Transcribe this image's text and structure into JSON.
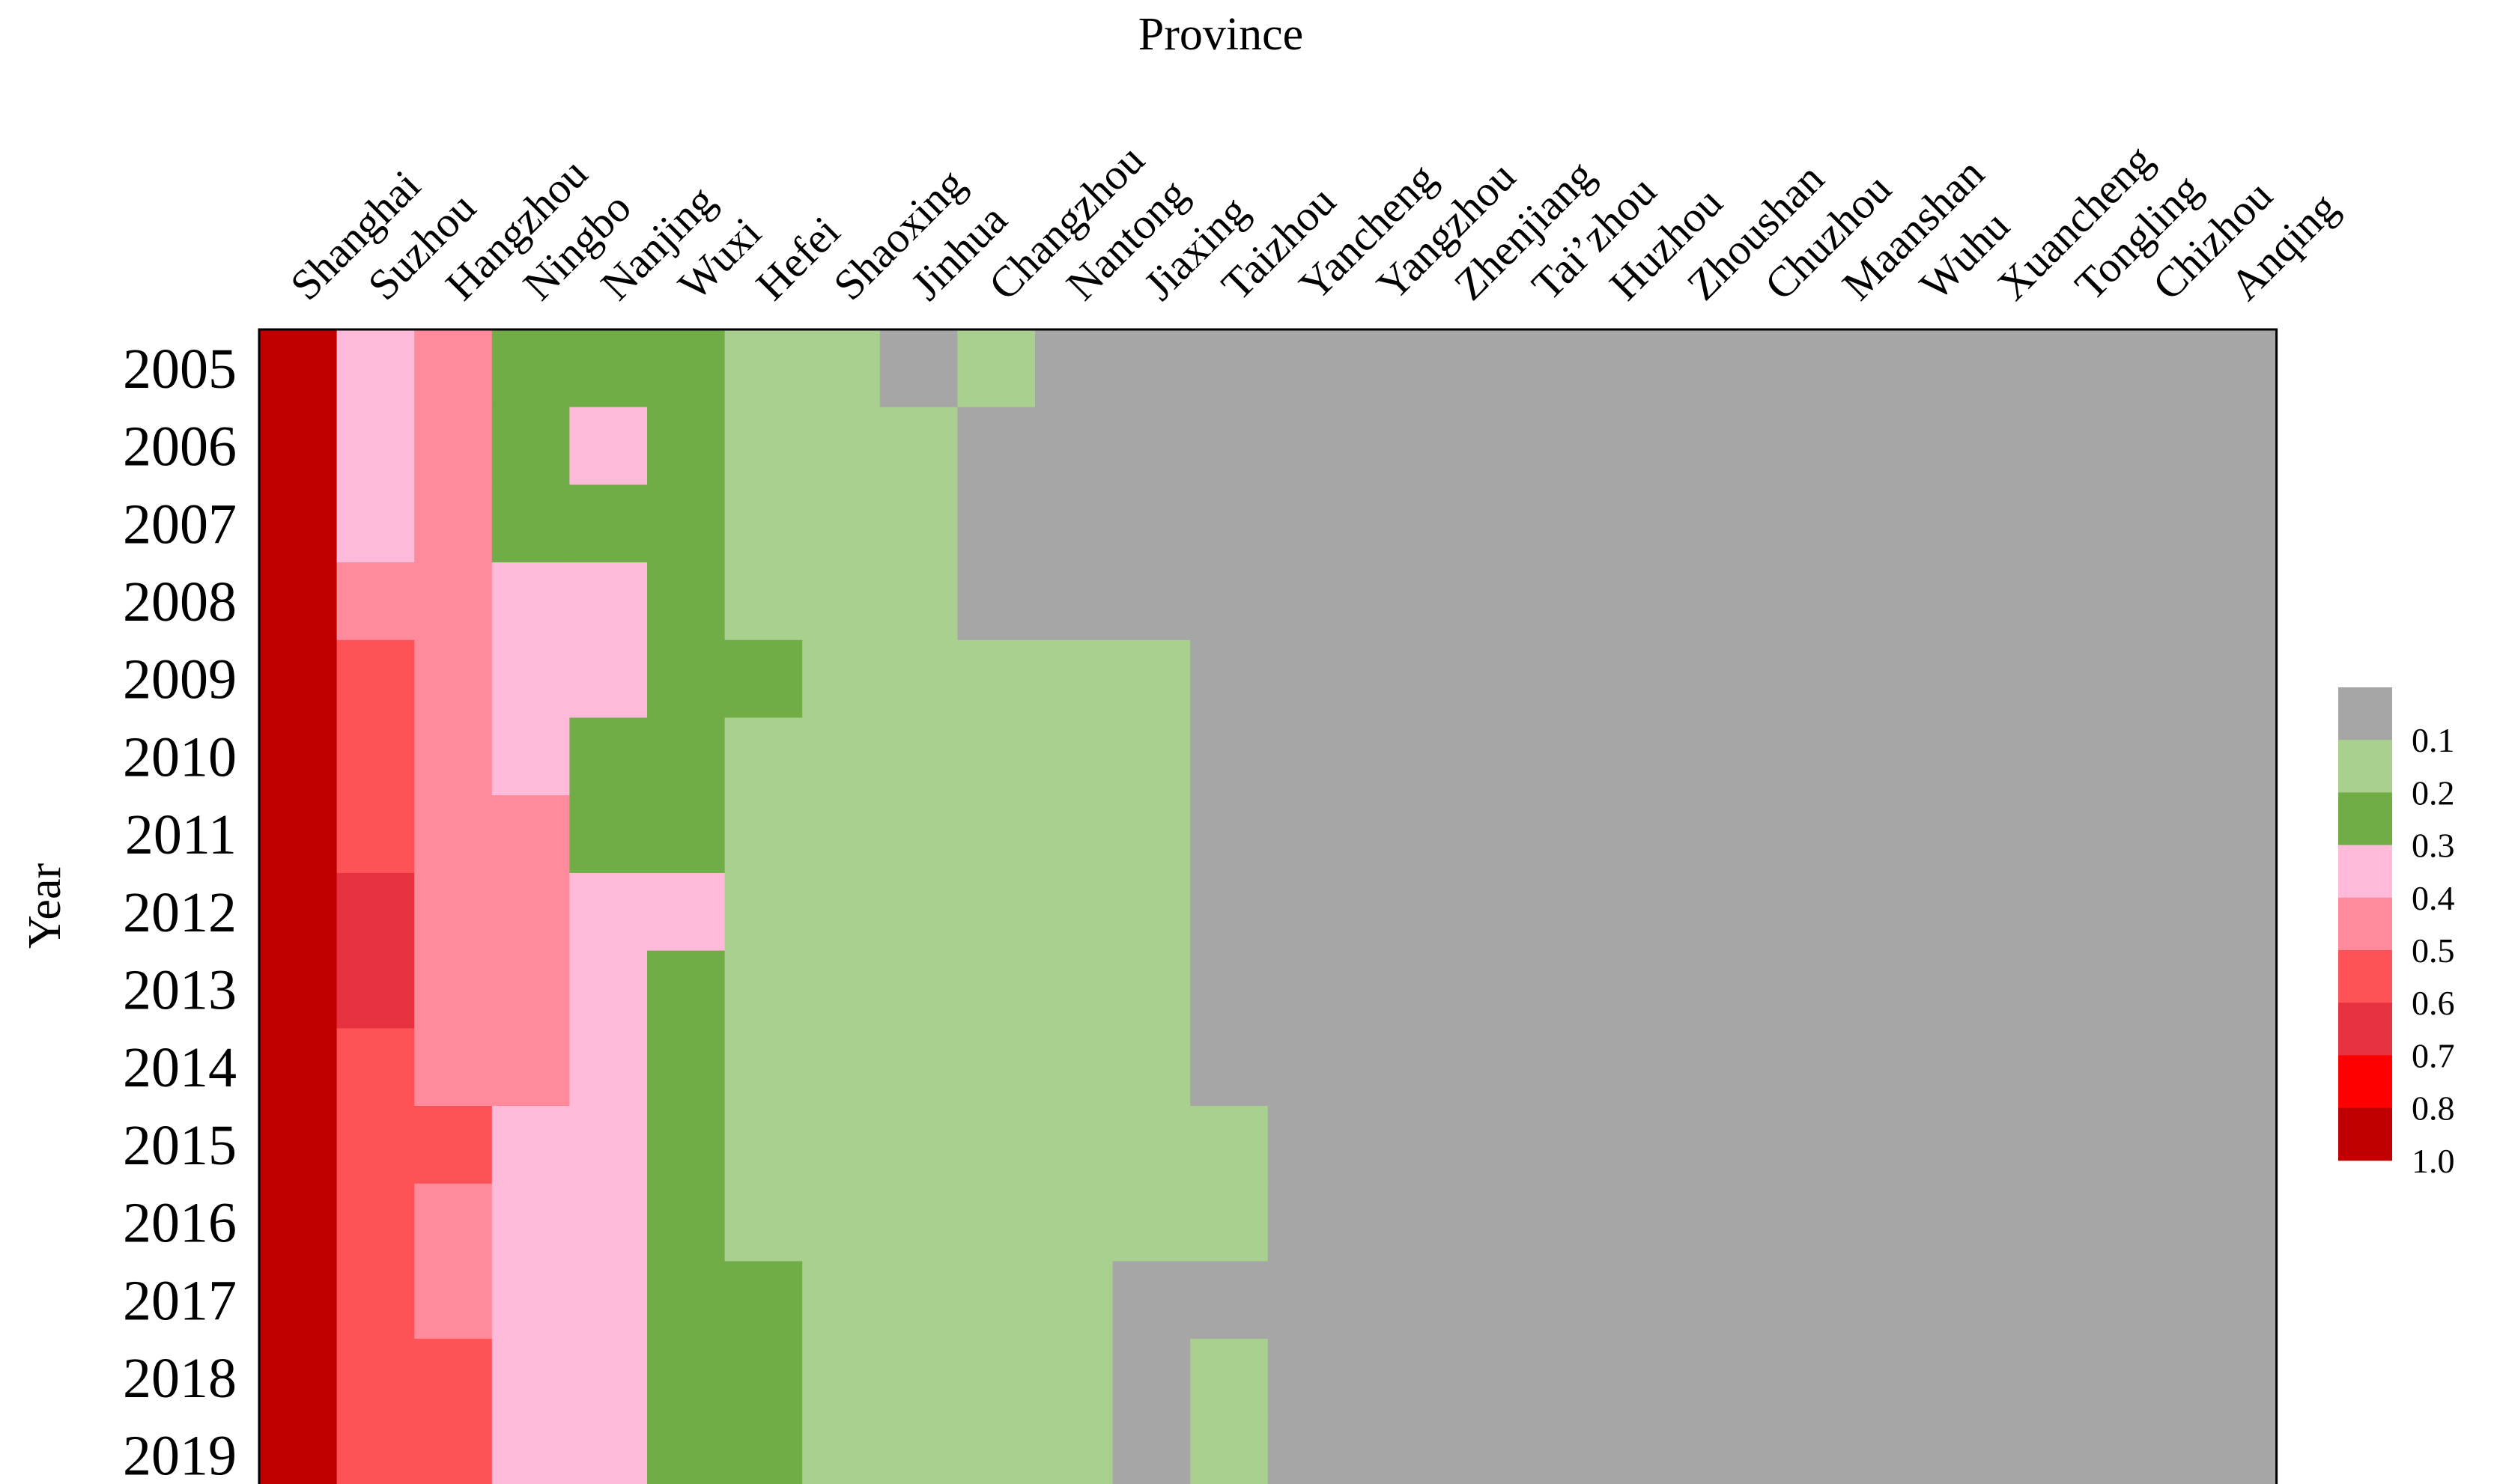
{
  "chart_data": {
    "type": "heatmap",
    "xlabel": "Province",
    "ylabel": "Year",
    "columns": [
      "Shanghai",
      "Suzhou",
      "Hangzhou",
      "Ningbo",
      "Nanjing",
      "Wuxi",
      "Hefei",
      "Shaoxing",
      "Jinhua",
      "Changzhou",
      "Nantong",
      "Jiaxing",
      "Taizhou",
      "Yancheng",
      "Yangzhou",
      "Zhenjiang",
      "Tai’zhou",
      "Huzhou",
      "Zhoushan",
      "Chuzhou",
      "Maanshan",
      "Wuhu",
      "Xuancheng",
      "Tongling",
      "Chizhou",
      "Anqing"
    ],
    "rows": [
      "2005",
      "2006",
      "2007",
      "2008",
      "2009",
      "2010",
      "2011",
      "2012",
      "2013",
      "2014",
      "2015",
      "2016",
      "2017",
      "2018",
      "2019"
    ],
    "values": [
      [
        1.0,
        0.4,
        0.5,
        0.3,
        0.3,
        0.3,
        0.2,
        0.2,
        0.1,
        0.2,
        0.1,
        0.1,
        0.1,
        0.1,
        0.1,
        0.1,
        0.1,
        0.1,
        0.0,
        0.0,
        0.0,
        0.0,
        0.0,
        0.0,
        0.0,
        0.0
      ],
      [
        1.0,
        0.4,
        0.5,
        0.3,
        0.4,
        0.3,
        0.2,
        0.2,
        0.2,
        0.1,
        0.1,
        0.1,
        0.1,
        0.1,
        0.1,
        0.1,
        0.1,
        0.1,
        0.0,
        0.0,
        0.0,
        0.0,
        0.0,
        0.0,
        0.0,
        0.0
      ],
      [
        1.0,
        0.4,
        0.5,
        0.3,
        0.3,
        0.3,
        0.2,
        0.2,
        0.2,
        0.1,
        0.1,
        0.1,
        0.1,
        0.1,
        0.1,
        0.1,
        0.1,
        0.1,
        0.0,
        0.0,
        0.0,
        0.0,
        0.0,
        0.0,
        0.0,
        0.0
      ],
      [
        1.0,
        0.5,
        0.5,
        0.4,
        0.4,
        0.3,
        0.2,
        0.2,
        0.2,
        0.1,
        0.1,
        0.1,
        0.1,
        0.1,
        0.1,
        0.1,
        0.1,
        0.1,
        0.0,
        0.0,
        0.0,
        0.0,
        0.0,
        0.0,
        0.0,
        0.0
      ],
      [
        1.0,
        0.6,
        0.5,
        0.4,
        0.4,
        0.3,
        0.3,
        0.2,
        0.2,
        0.2,
        0.2,
        0.2,
        0.1,
        0.1,
        0.1,
        0.1,
        0.1,
        0.1,
        0.0,
        0.0,
        0.0,
        0.0,
        0.0,
        0.0,
        0.0,
        0.0
      ],
      [
        1.0,
        0.6,
        0.5,
        0.4,
        0.3,
        0.3,
        0.2,
        0.2,
        0.2,
        0.2,
        0.2,
        0.2,
        0.1,
        0.1,
        0.1,
        0.1,
        0.1,
        0.1,
        0.0,
        0.0,
        0.0,
        0.0,
        0.0,
        0.0,
        0.0,
        0.0
      ],
      [
        1.0,
        0.6,
        0.5,
        0.5,
        0.3,
        0.3,
        0.2,
        0.2,
        0.2,
        0.2,
        0.2,
        0.2,
        0.1,
        0.1,
        0.1,
        0.1,
        0.1,
        0.1,
        0.0,
        0.0,
        0.0,
        0.0,
        0.0,
        0.0,
        0.0,
        0.0
      ],
      [
        1.0,
        0.7,
        0.5,
        0.5,
        0.4,
        0.4,
        0.2,
        0.2,
        0.2,
        0.2,
        0.2,
        0.2,
        0.1,
        0.1,
        0.1,
        0.1,
        0.1,
        0.1,
        0.0,
        0.0,
        0.0,
        0.0,
        0.0,
        0.0,
        0.0,
        0.0
      ],
      [
        1.0,
        0.7,
        0.5,
        0.5,
        0.4,
        0.3,
        0.2,
        0.2,
        0.2,
        0.2,
        0.2,
        0.2,
        0.1,
        0.1,
        0.1,
        0.1,
        0.1,
        0.1,
        0.0,
        0.0,
        0.0,
        0.0,
        0.0,
        0.0,
        0.0,
        0.0
      ],
      [
        1.0,
        0.6,
        0.5,
        0.5,
        0.4,
        0.3,
        0.2,
        0.2,
        0.2,
        0.2,
        0.2,
        0.2,
        0.1,
        0.1,
        0.1,
        0.1,
        0.1,
        0.1,
        0.0,
        0.0,
        0.0,
        0.0,
        0.0,
        0.0,
        0.0,
        0.0
      ],
      [
        1.0,
        0.6,
        0.6,
        0.4,
        0.4,
        0.3,
        0.2,
        0.2,
        0.2,
        0.2,
        0.2,
        0.2,
        0.2,
        0.1,
        0.1,
        0.1,
        0.1,
        0.1,
        0.0,
        0.0,
        0.0,
        0.0,
        0.0,
        0.0,
        0.0,
        0.0
      ],
      [
        1.0,
        0.6,
        0.5,
        0.4,
        0.4,
        0.3,
        0.2,
        0.2,
        0.2,
        0.2,
        0.2,
        0.2,
        0.2,
        0.1,
        0.1,
        0.1,
        0.1,
        0.1,
        0.0,
        0.0,
        0.0,
        0.0,
        0.0,
        0.0,
        0.0,
        0.0
      ],
      [
        1.0,
        0.6,
        0.5,
        0.4,
        0.4,
        0.3,
        0.3,
        0.2,
        0.2,
        0.2,
        0.2,
        0.1,
        0.1,
        0.1,
        0.1,
        0.1,
        0.1,
        0.1,
        0.0,
        0.0,
        0.0,
        0.0,
        0.0,
        0.0,
        0.0,
        0.0
      ],
      [
        1.0,
        0.6,
        0.6,
        0.4,
        0.4,
        0.3,
        0.3,
        0.2,
        0.2,
        0.2,
        0.2,
        0.1,
        0.2,
        0.1,
        0.1,
        0.1,
        0.1,
        0.1,
        0.0,
        0.0,
        0.0,
        0.0,
        0.0,
        0.0,
        0.0,
        0.0
      ],
      [
        1.0,
        0.6,
        0.6,
        0.4,
        0.4,
        0.3,
        0.3,
        0.2,
        0.2,
        0.2,
        0.2,
        0.1,
        0.2,
        0.1,
        0.1,
        0.1,
        0.1,
        0.1,
        0.0,
        0.0,
        0.0,
        0.0,
        0.0,
        0.0,
        0.0,
        0.0
      ]
    ],
    "legend": {
      "placement": "right",
      "labels": [
        "0.1",
        "0.2",
        "0.3",
        "0.4",
        "0.5",
        "0.6",
        "0.7",
        "0.8",
        "1.0"
      ],
      "bins": [
        {
          "max": 0.1,
          "color": "#a6a6a6"
        },
        {
          "max": 0.2,
          "color": "#a9d08e"
        },
        {
          "max": 0.3,
          "color": "#70ad47"
        },
        {
          "max": 0.4,
          "color": "#ffb9d9"
        },
        {
          "max": 0.5,
          "color": "#ff8a9c"
        },
        {
          "max": 0.6,
          "color": "#ff5257"
        },
        {
          "max": 0.7,
          "color": "#e5323e"
        },
        {
          "max": 0.8,
          "color": "#ff0000"
        },
        {
          "max": 1.0,
          "color": "#c00000"
        }
      ]
    },
    "grid": false
  }
}
